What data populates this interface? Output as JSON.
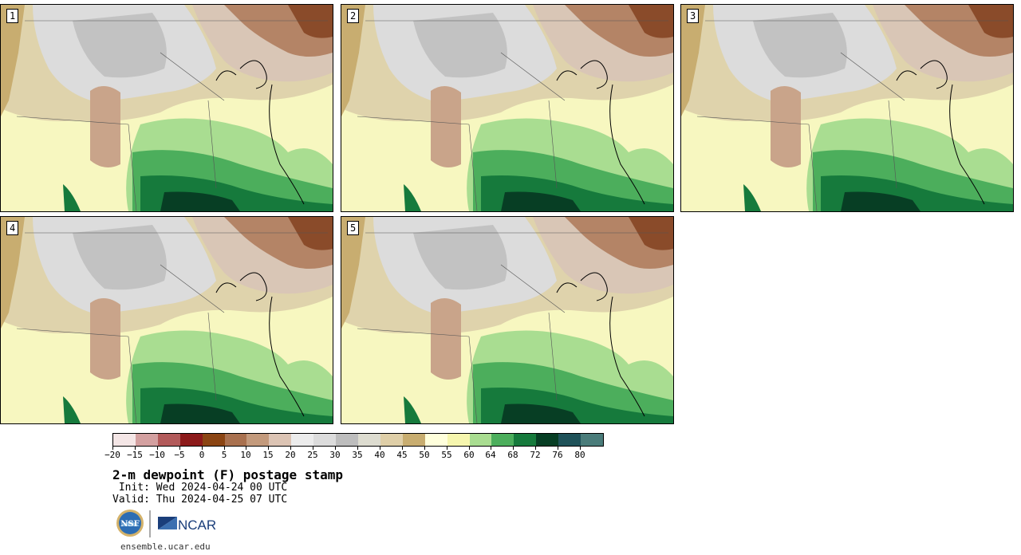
{
  "panels": [
    {
      "label": "1"
    },
    {
      "label": "2"
    },
    {
      "label": "3"
    },
    {
      "label": "4"
    },
    {
      "label": "5"
    }
  ],
  "colorbar": {
    "colors": [
      "#f4e6e6",
      "#d3a0a0",
      "#b25a5a",
      "#8c1a1a",
      "#8b4513",
      "#a9714f",
      "#c39a7c",
      "#dcc4b4",
      "#ececec",
      "#dcdcdc",
      "#bdbdbd",
      "#dddcd0",
      "#dfcfa8",
      "#c8ad70",
      "#ffffdc",
      "#f6f6ae",
      "#a9dd91",
      "#4cae5c",
      "#167a3c",
      "#073e24",
      "#1f5259",
      "#4a7c7a"
    ],
    "tick_labels": [
      "−20",
      "−15",
      "−10",
      "−5",
      "0",
      "5",
      "10",
      "15",
      "20",
      "25",
      "30",
      "35",
      "40",
      "45",
      "50",
      "55",
      "60",
      "64",
      "68",
      "72",
      "76",
      "80"
    ]
  },
  "title": "2-m dewpoint (F) postage stamp",
  "init": " Init: Wed 2024-04-24 00 UTC",
  "valid": "Valid: Thu 2024-04-25 07 UTC",
  "logos": {
    "nsf": "NSF",
    "ncar": "NCAR"
  },
  "site": "ensemble.ucar.edu"
}
